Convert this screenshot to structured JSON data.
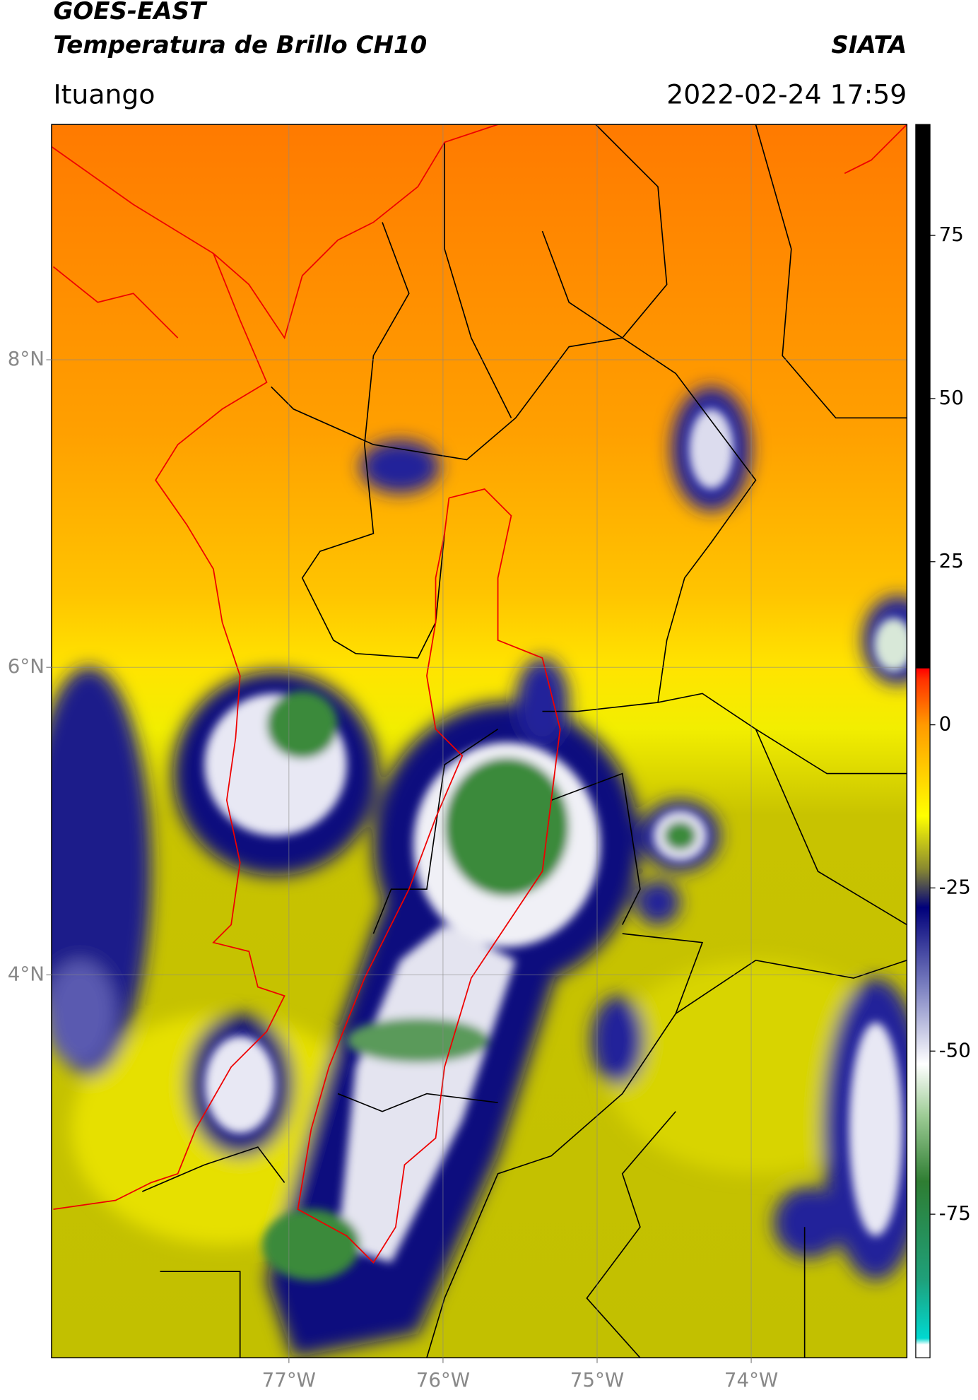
{
  "chart_data": {
    "type": "map",
    "title": "GOES-EAST",
    "subtitle": "Temperatura de Brillo CH10",
    "source": "SIATA",
    "region": "Ituango",
    "datetime": "2022-02-24 17:59",
    "xlim": [
      -78.54,
      -72.99
    ],
    "ylim": [
      1.51,
      9.53
    ],
    "xticks": [
      {
        "value": -77,
        "label": "77°W"
      },
      {
        "value": -76,
        "label": "76°W"
      },
      {
        "value": -75,
        "label": "75°W"
      },
      {
        "value": -74,
        "label": "74°W"
      }
    ],
    "yticks": [
      {
        "value": 8,
        "label": "8°N"
      },
      {
        "value": 6,
        "label": "6°N"
      },
      {
        "value": 4,
        "label": "4°N"
      }
    ],
    "grid": true,
    "colorbar": {
      "range": [
        -97,
        92
      ],
      "ticks": [
        75,
        50,
        25,
        0,
        -25,
        -50,
        -75
      ],
      "stops": [
        {
          "value": -97,
          "color": "#ffffff"
        },
        {
          "value": -95,
          "color": "#ffffff"
        },
        {
          "value": -94,
          "color": "#00d8d0"
        },
        {
          "value": -85,
          "color": "#1fa07a"
        },
        {
          "value": -70,
          "color": "#2e7d32"
        },
        {
          "value": -60,
          "color": "#9ccb94"
        },
        {
          "value": -52,
          "color": "#ffffff"
        },
        {
          "value": -40,
          "color": "#7a7fc0"
        },
        {
          "value": -28,
          "color": "#00007a"
        },
        {
          "value": -22,
          "color": "#8a8a30"
        },
        {
          "value": -14,
          "color": "#ffff00"
        },
        {
          "value": 0,
          "color": "#ff9a00"
        },
        {
          "value": 7,
          "color": "#ff3000"
        },
        {
          "value": 8.6,
          "color": "#ff0000"
        },
        {
          "value": 8.7,
          "color": "#000000"
        },
        {
          "value": 92,
          "color": "#000000"
        }
      ]
    }
  }
}
